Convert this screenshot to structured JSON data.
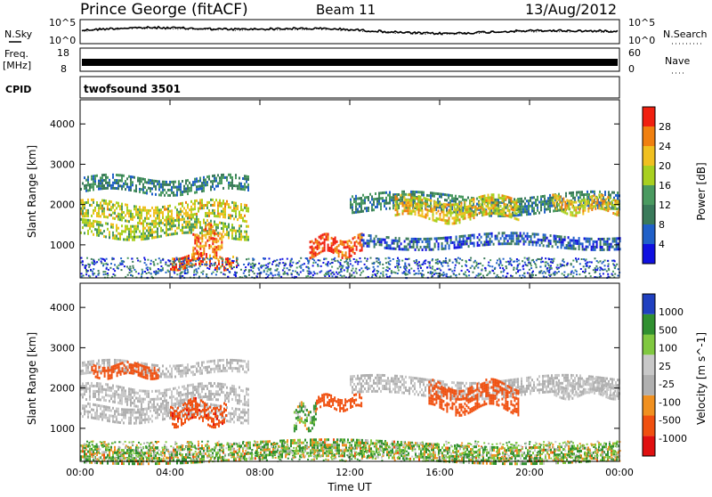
{
  "header": {
    "station": "Prince George (fitACF)",
    "beam": "Beam 11",
    "date": "13/Aug/2012"
  },
  "noise_panel": {
    "left_label": "N.Sky",
    "right_label": "N.Search",
    "left_ticks": [
      "10^5",
      "10^0"
    ],
    "right_ticks": [
      "10^5",
      "10^0"
    ]
  },
  "freq_panel": {
    "left_label_line1": "Freq.",
    "left_label_line2": "[MHz]",
    "right_label": "Nave",
    "left_ticks": [
      "18",
      "8"
    ],
    "right_ticks": [
      "60",
      "0"
    ]
  },
  "cpid_panel": {
    "label": "CPID",
    "program": "twofsound 3501"
  },
  "colors": {
    "power_scale": [
      "#1010e0",
      "#2060c8",
      "#3a7a5a",
      "#4a9a60",
      "#a8d020",
      "#f0c020",
      "#f08010",
      "#f02010"
    ],
    "velocity_scale": [
      "#e01010",
      "#f05010",
      "#f09020",
      "#b0b0b0",
      "#c8c8c8",
      "#80c840",
      "#309030",
      "#2040c0"
    ]
  },
  "chart_data": [
    {
      "type": "heatmap",
      "title": "",
      "xlabel": "",
      "ylabel": "Slant Range [km]",
      "xlim": [
        0,
        24
      ],
      "ylim": [
        180,
        4600
      ],
      "x_ticks": [
        "00:00",
        "04:00",
        "08:00",
        "12:00",
        "16:00",
        "20:00",
        "00:00"
      ],
      "y_ticks": [
        "1000",
        "2000",
        "3000",
        "4000"
      ],
      "colorbar": {
        "label": "Power [dB]",
        "ticks": [
          "28",
          "24",
          "20",
          "16",
          "12",
          "8",
          "4"
        ],
        "range": [
          0,
          30
        ]
      },
      "scatter_bands": [
        {
          "x_range": [
            0.0,
            7.5
          ],
          "y_center": 2500,
          "y_halfwidth": 180,
          "value": 10
        },
        {
          "x_range": [
            0.0,
            7.5
          ],
          "y_center": 1850,
          "y_halfwidth": 200,
          "value": 18
        },
        {
          "x_range": [
            0.0,
            7.5
          ],
          "y_center": 1400,
          "y_halfwidth": 180,
          "value": 16
        },
        {
          "x_range": [
            5.0,
            6.3
          ],
          "y_center": 1100,
          "y_halfwidth": 300,
          "value": 24
        },
        {
          "x_range": [
            4.0,
            7.0
          ],
          "y_center": 600,
          "y_halfwidth": 150,
          "value": 26
        },
        {
          "x_range": [
            10.2,
            12.5
          ],
          "y_center": 1000,
          "y_halfwidth": 200,
          "value": 27
        },
        {
          "x_range": [
            12.0,
            24.0
          ],
          "y_center": 2050,
          "y_halfwidth": 200,
          "value": 10
        },
        {
          "x_range": [
            14.0,
            19.5
          ],
          "y_center": 1900,
          "y_halfwidth": 250,
          "value": 20
        },
        {
          "x_range": [
            21.0,
            24.0
          ],
          "y_center": 2000,
          "y_halfwidth": 180,
          "value": 20
        },
        {
          "x_range": [
            12.5,
            24.0
          ],
          "y_center": 1100,
          "y_halfwidth": 150,
          "value": 6
        }
      ]
    },
    {
      "type": "heatmap",
      "title": "",
      "xlabel": "Time UT",
      "ylabel": "Slant Range [km]",
      "xlim": [
        0,
        24
      ],
      "ylim": [
        180,
        4600
      ],
      "x_ticks": [
        "00:00",
        "04:00",
        "08:00",
        "12:00",
        "16:00",
        "20:00",
        "00:00"
      ],
      "y_ticks": [
        "1000",
        "2000",
        "3000",
        "4000"
      ],
      "colorbar": {
        "label": "Velocity [m s^-1]",
        "ticks": [
          "1000",
          "500",
          "100",
          "25",
          "-25",
          "-100",
          "-500",
          "-1000"
        ],
        "range": [
          -1000,
          1000
        ]
      },
      "scatter_bands": [
        {
          "x_range": [
            0.0,
            7.5
          ],
          "y_center": 2500,
          "y_halfwidth": 150,
          "value": 0
        },
        {
          "x_range": [
            0.0,
            7.5
          ],
          "y_center": 1850,
          "y_halfwidth": 200,
          "value": 0
        },
        {
          "x_range": [
            0.0,
            7.5
          ],
          "y_center": 1400,
          "y_halfwidth": 180,
          "value": 0
        },
        {
          "x_range": [
            0.5,
            3.5
          ],
          "y_center": 2450,
          "y_halfwidth": 150,
          "value": -300
        },
        {
          "x_range": [
            4.0,
            6.5
          ],
          "y_center": 1400,
          "y_halfwidth": 250,
          "value": -350
        },
        {
          "x_range": [
            9.5,
            10.5
          ],
          "y_center": 1300,
          "y_halfwidth": 250,
          "value": 120
        },
        {
          "x_range": [
            10.5,
            12.5
          ],
          "y_center": 1650,
          "y_halfwidth": 150,
          "value": -300
        },
        {
          "x_range": [
            12.0,
            24.0
          ],
          "y_center": 2050,
          "y_halfwidth": 200,
          "value": 0
        },
        {
          "x_range": [
            15.5,
            19.5
          ],
          "y_center": 1800,
          "y_halfwidth": 300,
          "value": -300
        },
        {
          "x_range": [
            21.0,
            24.0
          ],
          "y_center": 2000,
          "y_halfwidth": 180,
          "value": 0
        },
        {
          "x_range": [
            0.0,
            24.0
          ],
          "y_center": 450,
          "y_halfwidth": 200,
          "value": 80
        }
      ]
    }
  ]
}
